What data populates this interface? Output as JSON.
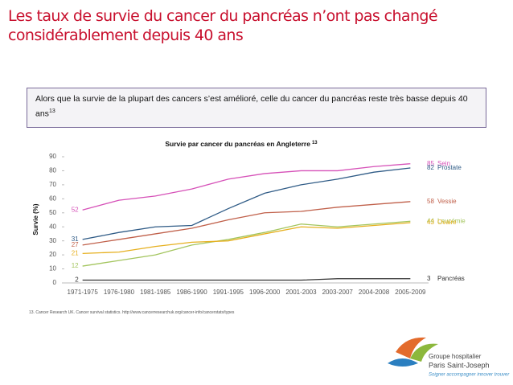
{
  "slide": {
    "title_lines": [
      "Les taux de survie du cancer du pancréas n’ont pas changé",
      "considérablement depuis 40 ans"
    ],
    "callout": "Alors que la survie de la plupart des cancers s’est amélioré, celle du cancer du pancréas reste très basse depuis 40 ans",
    "callout_ref": "13",
    "footnote": "13. Cancer Research UK. Cancer survival statistics. http://www.cancerresearchuk.org/cancer-info/cancerstats/types",
    "logo_line1": "Groupe hospitalier",
    "logo_line2": "Paris Saint-Joseph",
    "logo_tagline": "Soigner accompagner innover trouver"
  },
  "chart_data": {
    "type": "line",
    "title": "Survie par cancer du pancréas en Angleterre",
    "title_ref": "13",
    "y_label": "Survie (%)",
    "categories": [
      "1971-1975",
      "1976-1980",
      "1981-1985",
      "1986-1990",
      "1991-1995",
      "1996-2000",
      "2001-2003",
      "2003-2007",
      "2004-2008",
      "2005-2009"
    ],
    "ylim": [
      0,
      90
    ],
    "yticks": [
      0,
      10,
      20,
      30,
      40,
      50,
      60,
      70,
      80,
      90
    ],
    "series": [
      {
        "name": "Sein",
        "color": "#d651b8",
        "values": [
          52,
          59,
          62,
          67,
          74,
          78,
          80,
          80,
          83,
          85
        ]
      },
      {
        "name": "Prostate",
        "color": "#2f5b86",
        "values": [
          31,
          36,
          40,
          41,
          53,
          64,
          70,
          74,
          79,
          82
        ]
      },
      {
        "name": "Vessie",
        "color": "#c0604a",
        "values": [
          27,
          31,
          35,
          39,
          45,
          50,
          51,
          54,
          56,
          58
        ]
      },
      {
        "name": "Leucémie",
        "color": "#a3c55e",
        "values": [
          12,
          16,
          20,
          27,
          31,
          36,
          42,
          40,
          42,
          44
        ]
      },
      {
        "name": "Ovaire",
        "color": "#e6b01f",
        "values": [
          21,
          22,
          26,
          29,
          30,
          35,
          40,
          39,
          41,
          43
        ]
      },
      {
        "name": "Pancréas",
        "color": "#333333",
        "values": [
          2,
          2,
          2,
          2,
          2,
          2,
          2,
          3,
          3,
          3
        ]
      }
    ]
  }
}
